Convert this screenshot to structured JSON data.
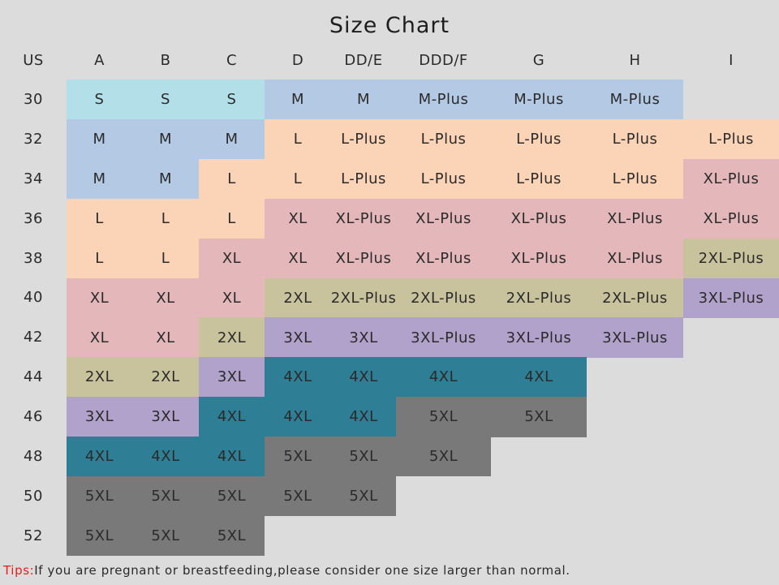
{
  "title": "Size Chart",
  "corner_label": "US",
  "columns": [
    "A",
    "B",
    "C",
    "D",
    "DD/E",
    "DDD/F",
    "G",
    "H",
    "I"
  ],
  "rows": [
    {
      "band": "30",
      "sizes": [
        "S",
        "S",
        "S",
        "M",
        "M",
        "M-Plus",
        "M-Plus",
        "M-Plus",
        ""
      ]
    },
    {
      "band": "32",
      "sizes": [
        "M",
        "M",
        "M",
        "L",
        "L-Plus",
        "L-Plus",
        "L-Plus",
        "L-Plus",
        "L-Plus"
      ]
    },
    {
      "band": "34",
      "sizes": [
        "M",
        "M",
        "L",
        "L",
        "L-Plus",
        "L-Plus",
        "L-Plus",
        "L-Plus",
        "XL-Plus"
      ]
    },
    {
      "band": "36",
      "sizes": [
        "L",
        "L",
        "L",
        "XL",
        "XL-Plus",
        "XL-Plus",
        "XL-Plus",
        "XL-Plus",
        "XL-Plus"
      ]
    },
    {
      "band": "38",
      "sizes": [
        "L",
        "L",
        "XL",
        "XL",
        "XL-Plus",
        "XL-Plus",
        "XL-Plus",
        "XL-Plus",
        "2XL-Plus"
      ]
    },
    {
      "band": "40",
      "sizes": [
        "XL",
        "XL",
        "XL",
        "2XL",
        "2XL-Plus",
        "2XL-Plus",
        "2XL-Plus",
        "2XL-Plus",
        "3XL-Plus"
      ]
    },
    {
      "band": "42",
      "sizes": [
        "XL",
        "XL",
        "2XL",
        "3XL",
        "3XL",
        "3XL-Plus",
        "3XL-Plus",
        "3XL-Plus",
        ""
      ]
    },
    {
      "band": "44",
      "sizes": [
        "2XL",
        "2XL",
        "3XL",
        "4XL",
        "4XL",
        "4XL",
        "4XL",
        "",
        ""
      ]
    },
    {
      "band": "46",
      "sizes": [
        "3XL",
        "3XL",
        "4XL",
        "4XL",
        "4XL",
        "5XL",
        "5XL",
        "",
        ""
      ]
    },
    {
      "band": "48",
      "sizes": [
        "4XL",
        "4XL",
        "4XL",
        "5XL",
        "5XL",
        "5XL",
        "",
        "",
        ""
      ]
    },
    {
      "band": "50",
      "sizes": [
        "5XL",
        "5XL",
        "5XL",
        "5XL",
        "5XL",
        "",
        "",
        "",
        ""
      ]
    },
    {
      "band": "52",
      "sizes": [
        "5XL",
        "5XL",
        "5XL",
        "",
        "",
        "",
        "",
        "",
        ""
      ]
    }
  ],
  "size_colors": {
    "S": "#b2dfe8",
    "M": "#b3c9e4",
    "M-Plus": "#b3c9e4",
    "L": "#fbd3b6",
    "L-Plus": "#fbd3b6",
    "XL": "#e4b8bb",
    "XL-Plus": "#e4b8bb",
    "2XL": "#c9c39d",
    "2XL-Plus": "#c9c39d",
    "3XL": "#b1a2cb",
    "3XL-Plus": "#b1a2cb",
    "4XL": "#2e7e96",
    "5XL": "#797979"
  },
  "tips": {
    "label": "Tips:",
    "text": "If you are pregnant or breastfeeding,please consider one size larger than normal."
  }
}
